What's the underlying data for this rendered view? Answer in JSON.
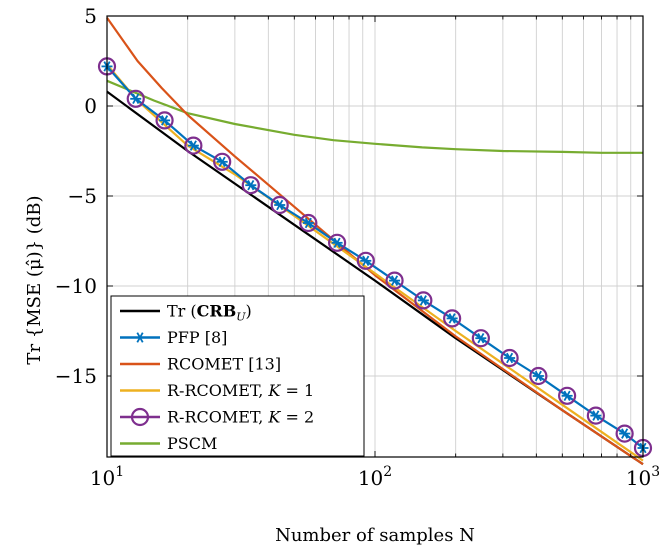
{
  "chart_data": {
    "type": "line",
    "xlabel": "Number of samples N",
    "ylabel": "Tr {MSE (μ̂)} (dB)",
    "x_scale": "log",
    "xlim": [
      10,
      1000
    ],
    "ylim": [
      -19.5,
      5
    ],
    "grid": true,
    "legend_position": "bottom-left",
    "x_tick_labels": [
      {
        "value": 10,
        "base": "10",
        "exp": "1"
      },
      {
        "value": 100,
        "base": "10",
        "exp": "2"
      },
      {
        "value": 1000,
        "base": "10",
        "exp": "3"
      }
    ],
    "y_ticks": [
      5,
      0,
      -5,
      -10,
      -15
    ],
    "y_tick_labels": [
      "5",
      "0",
      "−5",
      "−10",
      "−15"
    ],
    "series": [
      {
        "name": "Tr (CRB_U)",
        "color": "#000000",
        "marker": "none",
        "x": [
          10,
          20,
          50,
          100,
          200,
          500,
          1000
        ],
        "y": [
          0.8,
          -2.5,
          -6.6,
          -9.7,
          -12.9,
          -16.9,
          -19.9
        ]
      },
      {
        "name": "PFP [8]",
        "color": "#0072BD",
        "marker": "star",
        "x": [
          10,
          12.8,
          16.4,
          21,
          26.9,
          34.4,
          44.1,
          56.4,
          72.2,
          92.4,
          118.3,
          151.5,
          194,
          248.3,
          317.9,
          407,
          521,
          667,
          854,
          1000
        ],
        "y": [
          2.2,
          0.4,
          -0.8,
          -2.2,
          -3.1,
          -4.4,
          -5.5,
          -6.5,
          -7.6,
          -8.6,
          -9.7,
          -10.8,
          -11.8,
          -12.9,
          -14.0,
          -15.0,
          -16.1,
          -17.2,
          -18.2,
          -19.0
        ]
      },
      {
        "name": "RCOMET [13]",
        "color": "#D95319",
        "marker": "none",
        "x": [
          10,
          13,
          16,
          20,
          30,
          50,
          100,
          200,
          500,
          1000
        ],
        "y": [
          4.9,
          2.5,
          1.0,
          -0.5,
          -2.8,
          -5.6,
          -9.4,
          -12.8,
          -16.9,
          -19.9
        ]
      },
      {
        "name": "R-RCOMET, K = 1",
        "color": "#EDB120",
        "marker": "none",
        "x": [
          10,
          13,
          16,
          20,
          30,
          50,
          100,
          200,
          500,
          1000
        ],
        "y": [
          2.3,
          0.3,
          -0.9,
          -2.2,
          -3.8,
          -6.1,
          -9.3,
          -12.5,
          -16.6,
          -19.7
        ]
      },
      {
        "name": "R-RCOMET, K = 2",
        "color": "#7E2F8E",
        "marker": "circle",
        "x": [
          10,
          12.8,
          16.4,
          21,
          26.9,
          34.4,
          44.1,
          56.4,
          72.2,
          92.4,
          118.3,
          151.5,
          194,
          248.3,
          317.9,
          407,
          521,
          667,
          854,
          1000
        ],
        "y": [
          2.2,
          0.4,
          -0.8,
          -2.2,
          -3.1,
          -4.4,
          -5.5,
          -6.5,
          -7.6,
          -8.6,
          -9.7,
          -10.8,
          -11.8,
          -12.9,
          -14.0,
          -15.0,
          -16.1,
          -17.2,
          -18.2,
          -19.0
        ]
      },
      {
        "name": "PSCM",
        "color": "#77AC30",
        "marker": "none",
        "x": [
          10,
          15,
          20,
          30,
          50,
          70,
          100,
          150,
          200,
          300,
          500,
          700,
          1000
        ],
        "y": [
          1.4,
          0.3,
          -0.4,
          -1.0,
          -1.6,
          -1.9,
          -2.1,
          -2.3,
          -2.4,
          -2.5,
          -2.55,
          -2.6,
          -2.6
        ]
      }
    ]
  },
  "legend": {
    "items": [
      {
        "prefix": "Tr (",
        "bold": "CRB",
        "sub": "U",
        "suffix": ")"
      },
      {
        "prefix": "PFP [8]",
        "bold": "",
        "sub": "",
        "suffix": ""
      },
      {
        "prefix": "RCOMET [13]",
        "bold": "",
        "sub": "",
        "suffix": ""
      },
      {
        "prefix": "R-RCOMET, ",
        "italic": "K",
        "suffix": " = 1"
      },
      {
        "prefix": "R-RCOMET, ",
        "italic": "K",
        "suffix": " = 2"
      },
      {
        "prefix": "PSCM",
        "bold": "",
        "sub": "",
        "suffix": ""
      }
    ]
  }
}
